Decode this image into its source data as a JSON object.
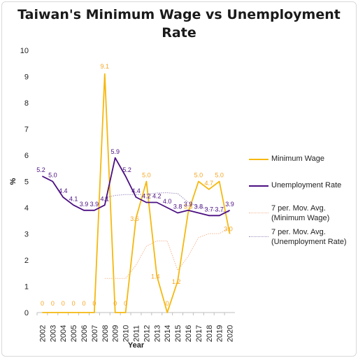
{
  "chart_data": {
    "type": "line",
    "title": "Taiwan's Minimum Wage vs Unemployment Rate",
    "xlabel": "Year",
    "ylabel": "%",
    "ylim": [
      0,
      10
    ],
    "yticks": [
      "0",
      "1",
      "2",
      "3",
      "4",
      "5",
      "6",
      "7",
      "8",
      "9",
      "10"
    ],
    "grid": false,
    "legend_position": "right",
    "categories": [
      "2002",
      "2003",
      "2004",
      "2005",
      "2006",
      "2007",
      "2008",
      "2009",
      "2010",
      "2011",
      "2012",
      "2013",
      "2014",
      "2015",
      "2016",
      "2017",
      "2018",
      "2019",
      "2020"
    ],
    "series": [
      {
        "name": "Minimum Wage",
        "color": "#f5b80f",
        "values": [
          0,
          0,
          0,
          0,
          0,
          0,
          9.1,
          0,
          0,
          3.6,
          5.0,
          1.4,
          0,
          1.2,
          3.8,
          5.0,
          4.7,
          5.0,
          3.0
        ],
        "labels": [
          "0",
          "0",
          "0",
          "0",
          "0",
          "0",
          "9.1",
          "0",
          "0",
          "3.6",
          "5.0",
          "1.4",
          "0",
          "1.2",
          "3.8",
          "5.0",
          "4.7",
          "5.0",
          "3.0"
        ]
      },
      {
        "name": "Unemployment Rate",
        "color": "#4b0f82",
        "values": [
          5.2,
          5.0,
          4.4,
          4.1,
          3.9,
          3.9,
          4.1,
          5.9,
          5.2,
          4.4,
          4.2,
          4.2,
          4.0,
          3.8,
          3.9,
          3.8,
          3.7,
          3.7,
          3.9
        ],
        "labels": [
          "5.2",
          "5.0",
          "4.4",
          "4.1",
          "3.9",
          "3.9",
          "4.1",
          "5.9",
          "5.2",
          "4.4",
          "4.2",
          "4.2",
          "4.0",
          "3.8",
          "3.9",
          "3.8",
          "3.7",
          "3.7",
          "3.9"
        ]
      },
      {
        "name": "7 per. Mov. Avg. (Minimum Wage)",
        "color": "#f5b895",
        "dotted": true,
        "values": [
          null,
          null,
          null,
          null,
          null,
          null,
          1.3,
          1.3,
          1.3,
          1.81,
          2.53,
          2.73,
          2.73,
          1.61,
          2.14,
          2.86,
          3.01,
          3.01,
          3.24
        ]
      },
      {
        "name": "7 per. Mov. Avg. (Unemployment Rate)",
        "color": "#a08cc0",
        "dotted": true,
        "values": [
          null,
          null,
          null,
          null,
          null,
          null,
          4.37,
          4.47,
          4.5,
          4.5,
          4.51,
          4.56,
          4.57,
          4.54,
          4.21,
          4.03,
          3.94,
          3.87,
          3.83
        ]
      }
    ]
  }
}
